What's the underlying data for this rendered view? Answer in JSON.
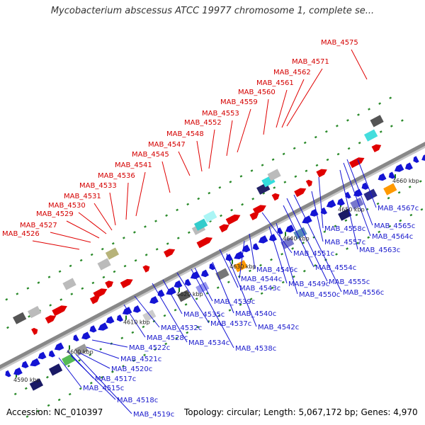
{
  "title": "Mycobacterium abscessus ATCC 19977 chromosome 1, complete se...",
  "accession": "Accession: NC_010397",
  "summary": "Topology: circular; Length: 5,067,172 bp; Genes: 4,970",
  "colors": {
    "forward": "#e00000",
    "reverse": "#1414d4",
    "backbone": "#888888",
    "grid": "#2a8a2a"
  },
  "ticks": [
    "4590 kbp",
    "4600 kbp",
    "4610 kbp",
    "4620 kbp",
    "4630 kbp",
    "4640 kbp",
    "4650 kbp",
    "4660 kbp"
  ],
  "forward_genes": [
    "MAB_4526",
    "MAB_4527",
    "MAB_4529",
    "MAB_4530",
    "MAB_4531",
    "MAB_4533",
    "MAB_4536",
    "MAB_4541",
    "MAB_4545",
    "MAB_4547",
    "MAB_4548",
    "MAB_4552",
    "MAB_4553",
    "MAB_4559",
    "MAB_4560",
    "MAB_4561",
    "MAB_4562",
    "MAB_4571",
    "MAB_4575"
  ],
  "reverse_genes": [
    "MAB_4515c",
    "MAB_4517c",
    "MAB_4518c",
    "MAB_4519c",
    "MAB_4520c",
    "MAB_4521c",
    "MAB_4522c",
    "MAB_4528c",
    "MAB_4532c",
    "MAB_4534c",
    "MAB_4535c",
    "MAB_4537c",
    "MAB_4538c",
    "MAB_4539c",
    "MAB_4540c",
    "MAB_4542c",
    "MAB_4543c",
    "MAB_4544c",
    "MAB_4546c",
    "MAB_4549c",
    "MAB_4550c",
    "MAB_4551c",
    "MAB_4554c",
    "MAB_4555c",
    "MAB_4556c",
    "MAB_4557c",
    "MAB_4558c",
    "MAB_4563c",
    "MAB_4564c",
    "MAB_4565c",
    "MAB_4567c"
  ]
}
